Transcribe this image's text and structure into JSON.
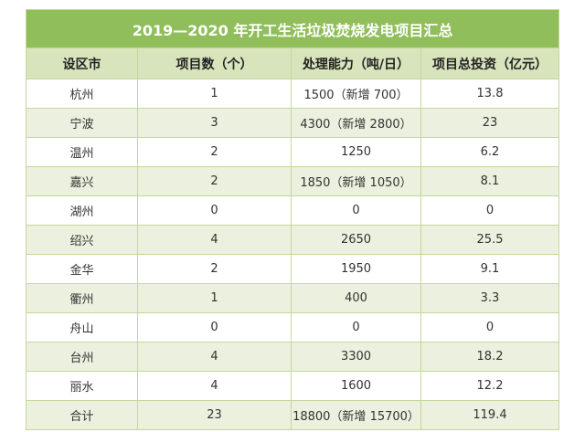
{
  "table": {
    "title": "2019—2020 年开工生活垃圾焚烧发电项目汇总",
    "headers": [
      "设区市",
      "项目数（个）",
      "处理能力（吨/日）",
      "项目总投资（亿元）"
    ],
    "rows": [
      [
        "杭州",
        "1",
        "1500（新增 700）",
        "13.8"
      ],
      [
        "宁波",
        "3",
        "4300（新增 2800）",
        "23"
      ],
      [
        "温州",
        "2",
        "1250",
        "6.2"
      ],
      [
        "嘉兴",
        "2",
        "1850（新增 1050）",
        "8.1"
      ],
      [
        "湖州",
        "0",
        "0",
        "0"
      ],
      [
        "绍兴",
        "4",
        "2650",
        "25.5"
      ],
      [
        "金华",
        "2",
        "1950",
        "9.1"
      ],
      [
        "衢州",
        "1",
        "400",
        "3.3"
      ],
      [
        "舟山",
        "0",
        "0",
        "0"
      ],
      [
        "台州",
        "4",
        "3300",
        "18.2"
      ],
      [
        "丽水",
        "4",
        "1600",
        "12.2"
      ],
      [
        "合计",
        "23",
        "18800（新增 15700）",
        "119.4"
      ]
    ]
  }
}
